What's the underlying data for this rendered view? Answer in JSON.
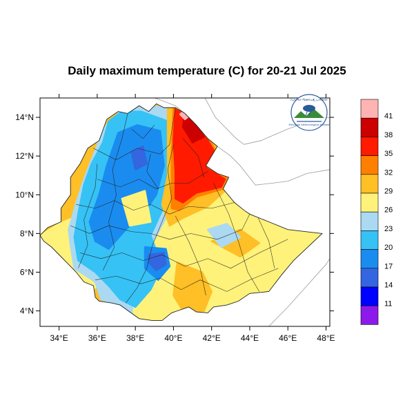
{
  "title": "Daily maximum temperature (C) for 20-21 Jul 2025",
  "map": {
    "lon_range": [
      33,
      48.2
    ],
    "lat_range": [
      3.2,
      15
    ],
    "x_ticks": [
      {
        "lon": 34,
        "label": "34°E"
      },
      {
        "lon": 36,
        "label": "36°E"
      },
      {
        "lon": 38,
        "label": "38°E"
      },
      {
        "lon": 40,
        "label": "40°E"
      },
      {
        "lon": 42,
        "label": "42°E"
      },
      {
        "lon": 44,
        "label": "44°E"
      },
      {
        "lon": 46,
        "label": "46°E"
      },
      {
        "lon": 48,
        "label": "48°E"
      }
    ],
    "y_ticks": [
      {
        "lat": 4,
        "label": "4°N"
      },
      {
        "lat": 6,
        "label": "6°N"
      },
      {
        "lat": 8,
        "label": "8°N"
      },
      {
        "lat": 10,
        "label": "10°N"
      },
      {
        "lat": 12,
        "label": "12°N"
      },
      {
        "lat": 14,
        "label": "14°N"
      }
    ]
  },
  "colorbar": {
    "levels": [
      {
        "label": "41",
        "color": "#ffb3b3"
      },
      {
        "label": "38",
        "color": "#cc0000"
      },
      {
        "label": "35",
        "color": "#ff1a00"
      },
      {
        "label": "32",
        "color": "#ff8000"
      },
      {
        "label": "29",
        "color": "#ffbf26"
      },
      {
        "label": "26",
        "color": "#fff27a"
      },
      {
        "label": "23",
        "color": "#abd9f2"
      },
      {
        "label": "20",
        "color": "#36c2f5"
      },
      {
        "label": "17",
        "color": "#1a8cf0"
      },
      {
        "label": "14",
        "color": "#3366e0"
      },
      {
        "label": "11",
        "color": "#0000ff"
      },
      {
        "label": "",
        "color": "#8c1aeb"
      }
    ]
  },
  "colors": {
    "frame": "#000000",
    "coast": "#9a9a9a",
    "border": "#222222"
  },
  "logo": {
    "text_top": "የኢትዮጵያ ሜቲዎሮሎጂ ኢንስቲትዩት",
    "text_bottom": "Ethiopian Meteorological Institute"
  }
}
